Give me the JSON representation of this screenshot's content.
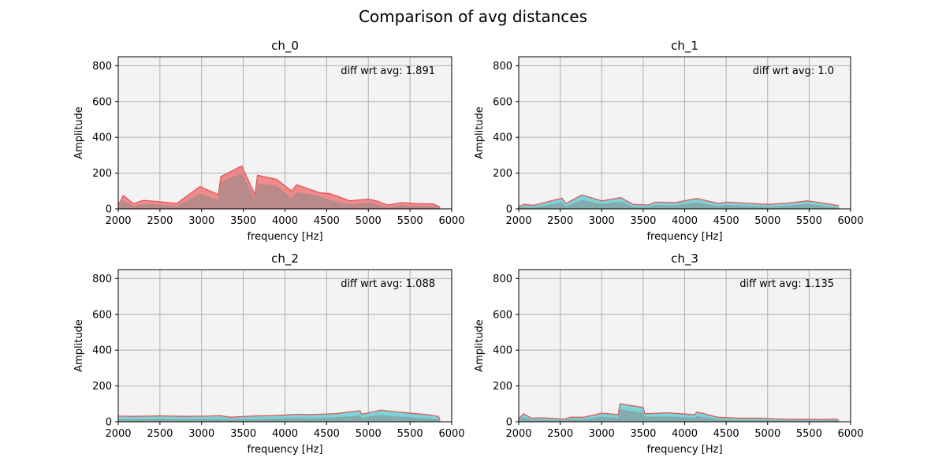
{
  "figure": {
    "title": "Comparison of avg distances"
  },
  "style": {
    "axes_bg": "#f3f3f3",
    "grid_color": "#b0b0b0",
    "outline_color": "#e05858",
    "fill_high": "#f07f7f",
    "fill_low": "#6fd0d6",
    "base_fill": "#8a8a8a"
  },
  "chart_data": [
    {
      "type": "area",
      "title": "ch_0",
      "xlabel": "frequency [Hz]",
      "ylabel": "Amplitude",
      "xlim": [
        2000,
        6000
      ],
      "ylim": [
        0,
        850
      ],
      "xticks": [
        2000,
        2500,
        3000,
        3500,
        4000,
        4500,
        5000,
        5500,
        6000
      ],
      "yticks": [
        0,
        200,
        400,
        600,
        800
      ],
      "grid": true,
      "annotation": "diff wrt avg: 1.891",
      "fill": "high",
      "envelope": {
        "x": [
          2000,
          2060,
          2180,
          2300,
          2500,
          2700,
          2980,
          3200,
          3230,
          3480,
          3640,
          3670,
          3900,
          4080,
          4140,
          4420,
          4540,
          4780,
          5000,
          5120,
          5180,
          5240,
          5400,
          5560,
          5780,
          5860
        ],
        "y": [
          20,
          75,
          30,
          48,
          40,
          30,
          125,
          80,
          180,
          240,
          80,
          188,
          165,
          100,
          135,
          90,
          85,
          45,
          55,
          42,
          30,
          22,
          35,
          30,
          28,
          10
        ]
      },
      "base": {
        "x": [
          2000,
          2060,
          2180,
          2300,
          2500,
          2700,
          2980,
          3200,
          3230,
          3480,
          3640,
          3670,
          3900,
          4080,
          4140,
          4420,
          4540,
          4780,
          5000,
          5120,
          5180,
          5240,
          5400,
          5560,
          5780,
          5860
        ],
        "y": [
          10,
          50,
          15,
          30,
          25,
          15,
          85,
          50,
          150,
          200,
          60,
          140,
          130,
          60,
          95,
          70,
          50,
          25,
          35,
          25,
          15,
          10,
          20,
          15,
          15,
          5
        ]
      }
    },
    {
      "type": "area",
      "title": "ch_1",
      "xlabel": "frequency [Hz]",
      "ylabel": "Amplitude",
      "xlim": [
        2000,
        6000
      ],
      "ylim": [
        0,
        850
      ],
      "xticks": [
        2000,
        2500,
        3000,
        3500,
        4000,
        4500,
        5000,
        5500,
        6000
      ],
      "yticks": [
        0,
        200,
        400,
        600,
        800
      ],
      "grid": true,
      "annotation": "diff wrt avg: 1.0",
      "fill": "low",
      "envelope": {
        "x": [
          2000,
          2060,
          2180,
          2350,
          2520,
          2570,
          2760,
          3000,
          3230,
          3380,
          3560,
          3650,
          3880,
          4150,
          4300,
          4420,
          4500,
          4750,
          5000,
          5250,
          5480,
          5700,
          5860
        ],
        "y": [
          12,
          25,
          20,
          40,
          60,
          30,
          78,
          45,
          63,
          25,
          22,
          38,
          35,
          58,
          42,
          30,
          38,
          32,
          25,
          33,
          45,
          30,
          18
        ]
      },
      "base": {
        "x": [
          2000,
          2060,
          2180,
          2350,
          2520,
          2570,
          2760,
          3000,
          3230,
          3380,
          3560,
          3650,
          3880,
          4150,
          4300,
          4420,
          4500,
          4750,
          5000,
          5250,
          5480,
          5700,
          5860
        ],
        "y": [
          5,
          12,
          10,
          22,
          35,
          15,
          50,
          28,
          40,
          12,
          10,
          22,
          20,
          38,
          25,
          15,
          22,
          18,
          12,
          18,
          28,
          15,
          8
        ]
      }
    },
    {
      "type": "area",
      "title": "ch_2",
      "xlabel": "frequency [Hz]",
      "ylabel": "Amplitude",
      "xlim": [
        2000,
        6000
      ],
      "ylim": [
        0,
        850
      ],
      "xticks": [
        2000,
        2500,
        3000,
        3500,
        4000,
        4500,
        5000,
        5500,
        6000
      ],
      "yticks": [
        0,
        200,
        400,
        600,
        800
      ],
      "grid": true,
      "annotation": "diff wrt avg: 1.088",
      "fill": "low",
      "envelope": {
        "x": [
          2000,
          2200,
          2500,
          2800,
          3100,
          3220,
          3350,
          3600,
          3900,
          4150,
          4300,
          4600,
          4900,
          4920,
          5150,
          5400,
          5700,
          5840,
          5860
        ],
        "y": [
          32,
          30,
          33,
          30,
          32,
          34,
          25,
          32,
          35,
          42,
          40,
          45,
          62,
          42,
          65,
          52,
          40,
          30,
          12
        ]
      },
      "base": {
        "x": [
          2000,
          2200,
          2500,
          2800,
          3100,
          3220,
          3350,
          3600,
          3900,
          4150,
          4300,
          4600,
          4900,
          4920,
          5150,
          5400,
          5700,
          5840,
          5860
        ],
        "y": [
          15,
          14,
          16,
          14,
          15,
          16,
          12,
          15,
          18,
          22,
          20,
          24,
          35,
          22,
          38,
          28,
          20,
          14,
          5
        ]
      }
    },
    {
      "type": "area",
      "title": "ch_3",
      "xlabel": "frequency [Hz]",
      "ylabel": "Amplitude",
      "xlim": [
        2000,
        6000
      ],
      "ylim": [
        0,
        850
      ],
      "xticks": [
        2000,
        2500,
        3000,
        3500,
        4000,
        4500,
        5000,
        5500,
        6000
      ],
      "yticks": [
        0,
        200,
        400,
        600,
        800
      ],
      "grid": true,
      "annotation": "diff wrt avg: 1.135",
      "fill": "low",
      "envelope": {
        "x": [
          2000,
          2060,
          2150,
          2300,
          2550,
          2620,
          2780,
          3000,
          3200,
          3220,
          3500,
          3520,
          3800,
          4120,
          4150,
          4400,
          4650,
          4900,
          5000,
          5200,
          5600,
          5830,
          5860
        ],
        "y": [
          15,
          45,
          20,
          22,
          15,
          25,
          25,
          48,
          40,
          100,
          80,
          45,
          50,
          40,
          55,
          25,
          20,
          20,
          18,
          15,
          13,
          15,
          8
        ]
      },
      "base": {
        "x": [
          2000,
          2060,
          2150,
          2300,
          2550,
          2620,
          2780,
          3000,
          3200,
          3220,
          3500,
          3520,
          3800,
          4120,
          4150,
          4400,
          4650,
          4900,
          5000,
          5200,
          5600,
          5830,
          5860
        ],
        "y": [
          8,
          25,
          10,
          12,
          8,
          14,
          14,
          28,
          22,
          70,
          50,
          28,
          30,
          22,
          32,
          14,
          10,
          10,
          9,
          8,
          6,
          8,
          4
        ]
      }
    }
  ]
}
